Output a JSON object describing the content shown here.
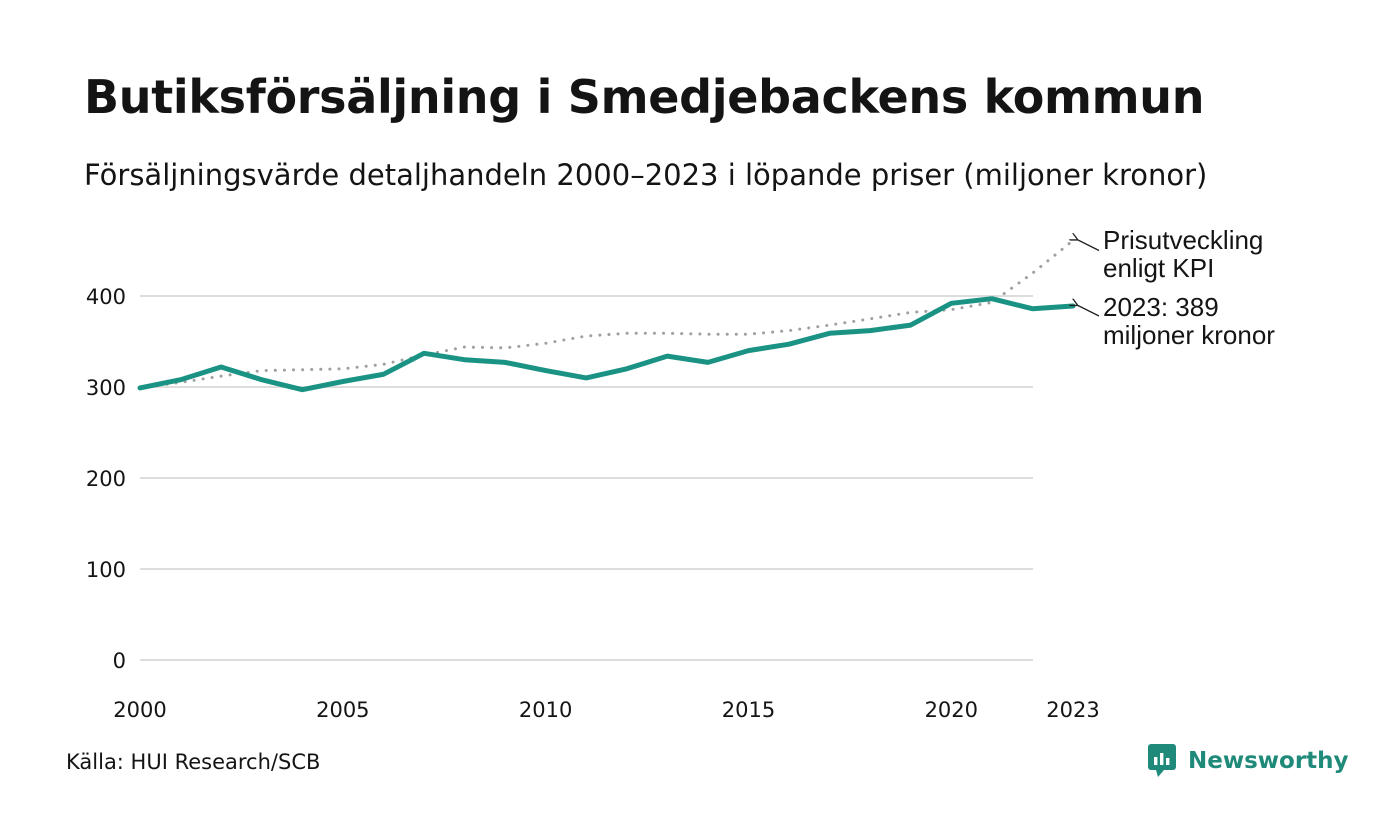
{
  "header": {
    "title": "Butiksförsäljning i Smedjebackens kommun",
    "subtitle": "Försäljningsvärde detaljhandeln 2000–2023 i löpande priser (miljoner kronor)"
  },
  "footer": {
    "source": "Källa: HUI Research/SCB",
    "brand": "Newsworthy"
  },
  "colors": {
    "sales_line": "#1a9384",
    "kpi_line": "#a0a0a0",
    "grid": "#dddddd",
    "brand": "#1f8a7a",
    "text": "#141414"
  },
  "chart_data": {
    "type": "line",
    "title": "Butiksförsäljning i Smedjebackens kommun",
    "xlabel": "",
    "ylabel": "",
    "xlim": [
      2000,
      2023
    ],
    "ylim": [
      0,
      460
    ],
    "yticks": [
      0,
      100,
      200,
      300,
      400
    ],
    "xticks": [
      2000,
      2005,
      2010,
      2015,
      2020,
      2023
    ],
    "grid": true,
    "legend": "inline-right",
    "x": [
      2000,
      2001,
      2002,
      2003,
      2004,
      2005,
      2006,
      2007,
      2008,
      2009,
      2010,
      2011,
      2012,
      2013,
      2014,
      2015,
      2016,
      2017,
      2018,
      2019,
      2020,
      2021,
      2022,
      2023
    ],
    "series": [
      {
        "name": "Försäljningsvärde",
        "style": "solid",
        "values": [
          299,
          308,
          322,
          308,
          297,
          306,
          314,
          337,
          330,
          327,
          318,
          310,
          320,
          334,
          327,
          340,
          347,
          359,
          362,
          368,
          392,
          397,
          386,
          389
        ]
      },
      {
        "name": "Prisutveckling enligt KPI",
        "style": "dotted",
        "values": [
          299,
          305,
          312,
          318,
          319,
          320,
          325,
          335,
          344,
          343,
          348,
          356,
          359,
          359,
          358,
          358,
          362,
          368,
          375,
          382,
          385,
          393,
          425,
          461
        ]
      }
    ],
    "annotations": [
      {
        "series": 1,
        "line1": "Prisutveckling",
        "line2": "enligt KPI"
      },
      {
        "series": 0,
        "line1": "2023: 389",
        "line2": "miljoner kronor"
      }
    ]
  }
}
